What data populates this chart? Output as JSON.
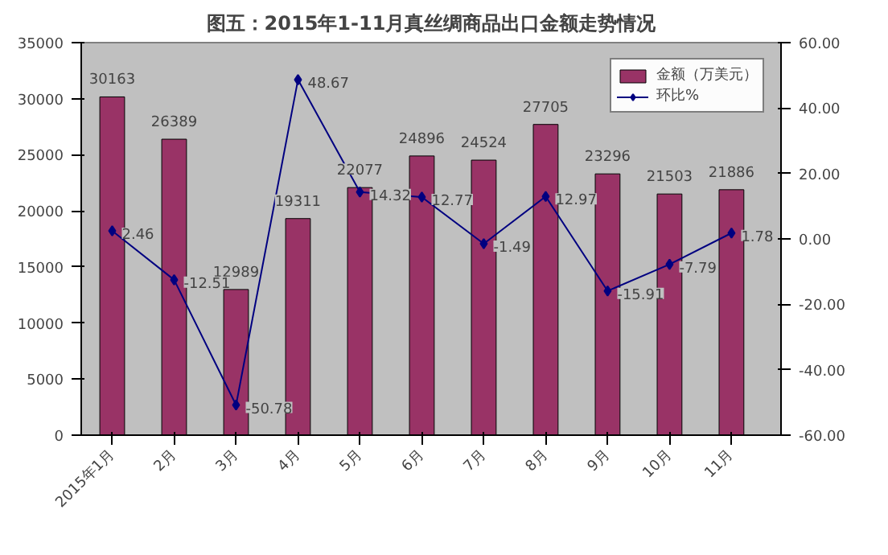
{
  "chart_data": {
    "type": "bar",
    "title": "图五：2015年1-11月真丝绸商品出口金额走势情况",
    "categories": [
      "2015年1月",
      "2月",
      "3月",
      "4月",
      "5月",
      "6月",
      "7月",
      "8月",
      "9月",
      "10月",
      "11月"
    ],
    "series": [
      {
        "name": "金额（万美元）",
        "color": "#993366",
        "values": [
          30163,
          26389,
          12989,
          19311,
          22077,
          24896,
          24524,
          27705,
          23296,
          21503,
          21886
        ]
      },
      {
        "name": "环比%",
        "type": "line",
        "axis": "y2",
        "color": "#000080",
        "marker": "diamond",
        "values": [
          2.46,
          -12.51,
          -50.78,
          48.67,
          14.32,
          12.77,
          -1.49,
          12.97,
          -15.91,
          -7.79,
          1.78
        ]
      }
    ],
    "ylim": [
      0,
      35000
    ],
    "yticks": [
      0,
      5000,
      10000,
      15000,
      20000,
      25000,
      30000,
      35000
    ],
    "y2lim": [
      -60,
      60
    ],
    "y2ticks": [
      {
        "value": -60,
        "label": "-60.00"
      },
      {
        "value": -40,
        "label": "-40.00"
      },
      {
        "value": -20,
        "label": "-20.00"
      },
      {
        "value": 0,
        "label": "0.00"
      },
      {
        "value": 20,
        "label": "20.00"
      },
      {
        "value": 40,
        "label": "40.00"
      },
      {
        "value": 60,
        "label": "60.00"
      }
    ],
    "data_labels": true,
    "grid": false,
    "legend": "top right"
  }
}
